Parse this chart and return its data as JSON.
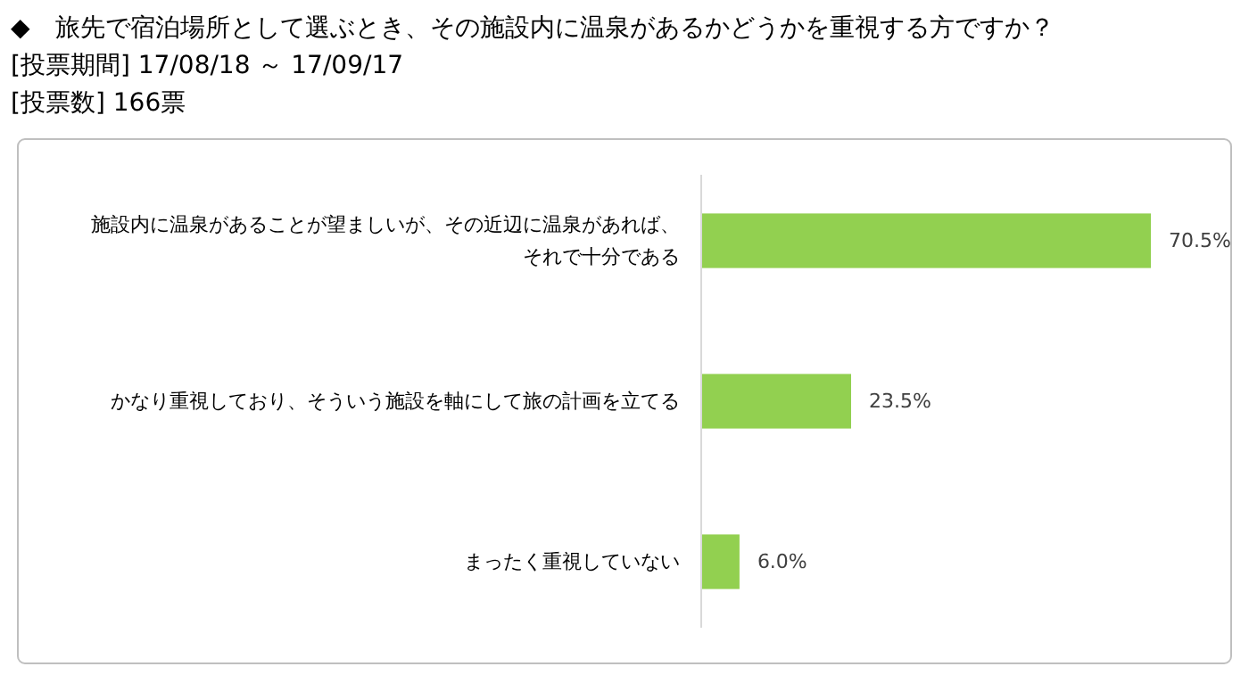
{
  "chart_data": {
    "type": "bar",
    "orientation": "horizontal",
    "data_labels": true,
    "title": "◆　旅先で宿泊場所として選ぶとき、その施設内に温泉があるかどうかを重視する方ですか？",
    "subtitle": "[投票期間] 17/08/18 ～ 17/09/17",
    "annotations": [
      "[投票数] 166票"
    ],
    "categories": [
      "施設内に温泉があることが望ましいが、その近辺に温泉があれば、それで十分である",
      "かなり重視しており、そういう施設を軸にして旅の計画を立てる",
      "まったく重視していない"
    ],
    "values": [
      70.5,
      23.5,
      6.0
    ],
    "value_labels": [
      "70.5%",
      "23.5%",
      "6.0%"
    ],
    "color": "#92d050"
  }
}
